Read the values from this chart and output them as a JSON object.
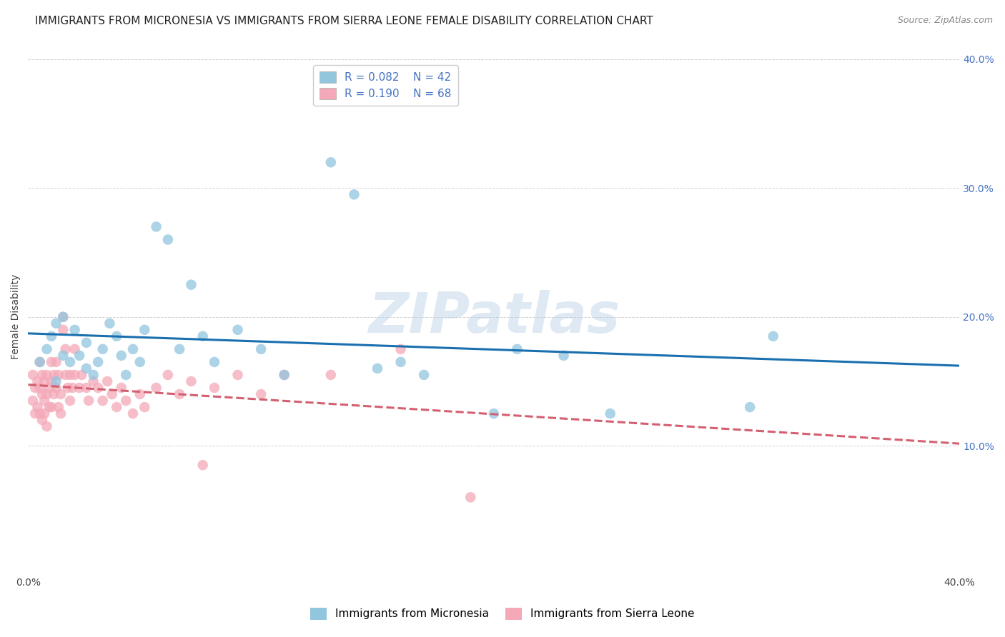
{
  "title": "IMMIGRANTS FROM MICRONESIA VS IMMIGRANTS FROM SIERRA LEONE FEMALE DISABILITY CORRELATION CHART",
  "source": "Source: ZipAtlas.com",
  "ylabel": "Female Disability",
  "xlim": [
    0.0,
    0.4
  ],
  "ylim": [
    0.0,
    0.4
  ],
  "color_blue": "#92c5de",
  "color_pink": "#f4a8b8",
  "color_blue_line": "#1a6faf",
  "color_pink_line": "#d45f70",
  "R_blue": 0.082,
  "N_blue": 42,
  "R_pink": 0.19,
  "N_pink": 68,
  "legend_label_blue": "Immigrants from Micronesia",
  "legend_label_pink": "Immigrants from Sierra Leone",
  "watermark": "ZIPatlas",
  "blue_x": [
    0.005,
    0.008,
    0.01,
    0.012,
    0.012,
    0.015,
    0.015,
    0.018,
    0.02,
    0.022,
    0.025,
    0.025,
    0.028,
    0.03,
    0.032,
    0.035,
    0.038,
    0.04,
    0.042,
    0.045,
    0.048,
    0.05,
    0.055,
    0.06,
    0.065,
    0.07,
    0.075,
    0.08,
    0.09,
    0.1,
    0.11,
    0.13,
    0.14,
    0.15,
    0.16,
    0.17,
    0.2,
    0.21,
    0.23,
    0.25,
    0.31,
    0.32
  ],
  "blue_y": [
    0.165,
    0.175,
    0.185,
    0.15,
    0.195,
    0.17,
    0.2,
    0.165,
    0.19,
    0.17,
    0.16,
    0.18,
    0.155,
    0.165,
    0.175,
    0.195,
    0.185,
    0.17,
    0.155,
    0.175,
    0.165,
    0.19,
    0.27,
    0.26,
    0.175,
    0.225,
    0.185,
    0.165,
    0.19,
    0.175,
    0.155,
    0.32,
    0.295,
    0.16,
    0.165,
    0.155,
    0.125,
    0.175,
    0.17,
    0.125,
    0.13,
    0.185
  ],
  "pink_x": [
    0.002,
    0.002,
    0.003,
    0.003,
    0.004,
    0.004,
    0.005,
    0.005,
    0.005,
    0.006,
    0.006,
    0.006,
    0.007,
    0.007,
    0.007,
    0.008,
    0.008,
    0.008,
    0.009,
    0.009,
    0.01,
    0.01,
    0.01,
    0.011,
    0.011,
    0.012,
    0.012,
    0.013,
    0.013,
    0.014,
    0.014,
    0.015,
    0.015,
    0.016,
    0.016,
    0.017,
    0.018,
    0.018,
    0.019,
    0.02,
    0.02,
    0.022,
    0.023,
    0.025,
    0.026,
    0.028,
    0.03,
    0.032,
    0.034,
    0.036,
    0.038,
    0.04,
    0.042,
    0.045,
    0.048,
    0.05,
    0.055,
    0.06,
    0.065,
    0.07,
    0.075,
    0.08,
    0.09,
    0.1,
    0.11,
    0.13,
    0.16,
    0.19
  ],
  "pink_y": [
    0.155,
    0.135,
    0.145,
    0.125,
    0.15,
    0.13,
    0.145,
    0.125,
    0.165,
    0.14,
    0.155,
    0.12,
    0.135,
    0.15,
    0.125,
    0.14,
    0.155,
    0.115,
    0.145,
    0.13,
    0.15,
    0.13,
    0.165,
    0.14,
    0.155,
    0.145,
    0.165,
    0.13,
    0.155,
    0.14,
    0.125,
    0.19,
    0.2,
    0.155,
    0.175,
    0.145,
    0.135,
    0.155,
    0.145,
    0.155,
    0.175,
    0.145,
    0.155,
    0.145,
    0.135,
    0.15,
    0.145,
    0.135,
    0.15,
    0.14,
    0.13,
    0.145,
    0.135,
    0.125,
    0.14,
    0.13,
    0.145,
    0.155,
    0.14,
    0.15,
    0.085,
    0.145,
    0.155,
    0.14,
    0.155,
    0.155,
    0.175,
    0.06
  ],
  "title_fontsize": 11,
  "axis_label_fontsize": 10,
  "tick_fontsize": 10,
  "legend_fontsize": 11
}
